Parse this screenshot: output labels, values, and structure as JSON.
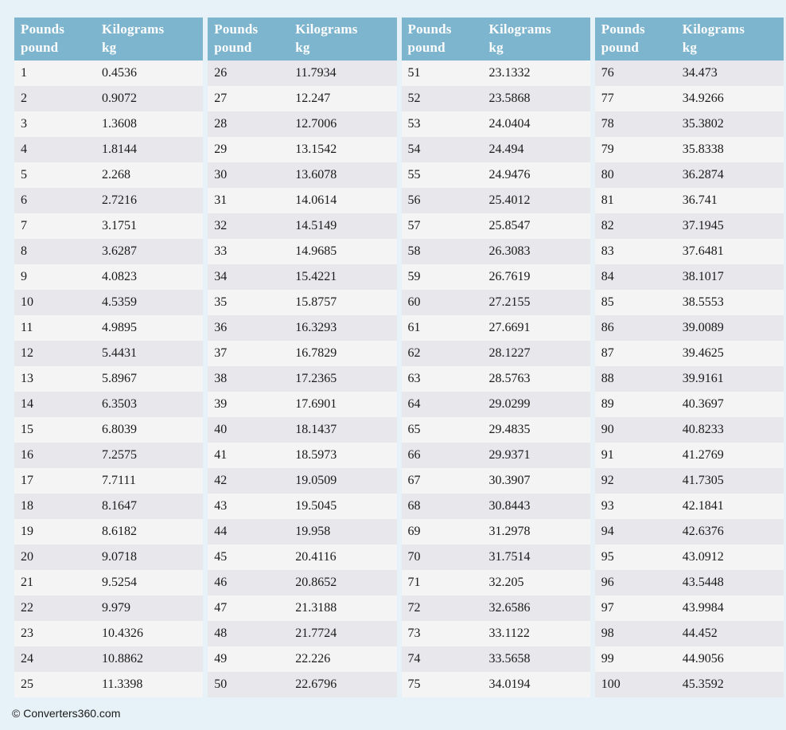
{
  "page": {
    "background_color": "#e7f1f8",
    "footer_text": "© Converters360.com"
  },
  "colors": {
    "header_background": "#7db5ce",
    "header_text": "#fdfdfd",
    "row_light": "#f4f4f4",
    "row_dark": "#e8e8ec",
    "cell_text": "#1a1a1a"
  },
  "tables": [
    {
      "header": {
        "col1_line1": "Pounds",
        "col1_line2": "pound",
        "col2_line1": "Kilograms",
        "col2_line2": "kg"
      },
      "rows": [
        [
          "1",
          "0.4536"
        ],
        [
          "2",
          "0.9072"
        ],
        [
          "3",
          "1.3608"
        ],
        [
          "4",
          "1.8144"
        ],
        [
          "5",
          "2.268"
        ],
        [
          "6",
          "2.7216"
        ],
        [
          "7",
          "3.1751"
        ],
        [
          "8",
          "3.6287"
        ],
        [
          "9",
          "4.0823"
        ],
        [
          "10",
          "4.5359"
        ],
        [
          "11",
          "4.9895"
        ],
        [
          "12",
          "5.4431"
        ],
        [
          "13",
          "5.8967"
        ],
        [
          "14",
          "6.3503"
        ],
        [
          "15",
          "6.8039"
        ],
        [
          "16",
          "7.2575"
        ],
        [
          "17",
          "7.7111"
        ],
        [
          "18",
          "8.1647"
        ],
        [
          "19",
          "8.6182"
        ],
        [
          "20",
          "9.0718"
        ],
        [
          "21",
          "9.5254"
        ],
        [
          "22",
          "9.979"
        ],
        [
          "23",
          "10.4326"
        ],
        [
          "24",
          "10.8862"
        ],
        [
          "25",
          "11.3398"
        ]
      ]
    },
    {
      "header": {
        "col1_line1": "Pounds",
        "col1_line2": "pound",
        "col2_line1": "Kilograms",
        "col2_line2": "kg"
      },
      "rows": [
        [
          "26",
          "11.7934"
        ],
        [
          "27",
          "12.247"
        ],
        [
          "28",
          "12.7006"
        ],
        [
          "29",
          "13.1542"
        ],
        [
          "30",
          "13.6078"
        ],
        [
          "31",
          "14.0614"
        ],
        [
          "32",
          "14.5149"
        ],
        [
          "33",
          "14.9685"
        ],
        [
          "34",
          "15.4221"
        ],
        [
          "35",
          "15.8757"
        ],
        [
          "36",
          "16.3293"
        ],
        [
          "37",
          "16.7829"
        ],
        [
          "38",
          "17.2365"
        ],
        [
          "39",
          "17.6901"
        ],
        [
          "40",
          "18.1437"
        ],
        [
          "41",
          "18.5973"
        ],
        [
          "42",
          "19.0509"
        ],
        [
          "43",
          "19.5045"
        ],
        [
          "44",
          "19.958"
        ],
        [
          "45",
          "20.4116"
        ],
        [
          "46",
          "20.8652"
        ],
        [
          "47",
          "21.3188"
        ],
        [
          "48",
          "21.7724"
        ],
        [
          "49",
          "22.226"
        ],
        [
          "50",
          "22.6796"
        ]
      ]
    },
    {
      "header": {
        "col1_line1": "Pounds",
        "col1_line2": "pound",
        "col2_line1": "Kilograms",
        "col2_line2": "kg"
      },
      "rows": [
        [
          "51",
          "23.1332"
        ],
        [
          "52",
          "23.5868"
        ],
        [
          "53",
          "24.0404"
        ],
        [
          "54",
          "24.494"
        ],
        [
          "55",
          "24.9476"
        ],
        [
          "56",
          "25.4012"
        ],
        [
          "57",
          "25.8547"
        ],
        [
          "58",
          "26.3083"
        ],
        [
          "59",
          "26.7619"
        ],
        [
          "60",
          "27.2155"
        ],
        [
          "61",
          "27.6691"
        ],
        [
          "62",
          "28.1227"
        ],
        [
          "63",
          "28.5763"
        ],
        [
          "64",
          "29.0299"
        ],
        [
          "65",
          "29.4835"
        ],
        [
          "66",
          "29.9371"
        ],
        [
          "67",
          "30.3907"
        ],
        [
          "68",
          "30.8443"
        ],
        [
          "69",
          "31.2978"
        ],
        [
          "70",
          "31.7514"
        ],
        [
          "71",
          "32.205"
        ],
        [
          "72",
          "32.6586"
        ],
        [
          "73",
          "33.1122"
        ],
        [
          "74",
          "33.5658"
        ],
        [
          "75",
          "34.0194"
        ]
      ]
    },
    {
      "header": {
        "col1_line1": "Pounds",
        "col1_line2": "pound",
        "col2_line1": "Kilograms",
        "col2_line2": "kg"
      },
      "rows": [
        [
          "76",
          "34.473"
        ],
        [
          "77",
          "34.9266"
        ],
        [
          "78",
          "35.3802"
        ],
        [
          "79",
          "35.8338"
        ],
        [
          "80",
          "36.2874"
        ],
        [
          "81",
          "36.741"
        ],
        [
          "82",
          "37.1945"
        ],
        [
          "83",
          "37.6481"
        ],
        [
          "84",
          "38.1017"
        ],
        [
          "85",
          "38.5553"
        ],
        [
          "86",
          "39.0089"
        ],
        [
          "87",
          "39.4625"
        ],
        [
          "88",
          "39.9161"
        ],
        [
          "89",
          "40.3697"
        ],
        [
          "90",
          "40.8233"
        ],
        [
          "91",
          "41.2769"
        ],
        [
          "92",
          "41.7305"
        ],
        [
          "93",
          "42.1841"
        ],
        [
          "94",
          "42.6376"
        ],
        [
          "95",
          "43.0912"
        ],
        [
          "96",
          "43.5448"
        ],
        [
          "97",
          "43.9984"
        ],
        [
          "98",
          "44.452"
        ],
        [
          "99",
          "44.9056"
        ],
        [
          "100",
          "45.3592"
        ]
      ]
    }
  ]
}
